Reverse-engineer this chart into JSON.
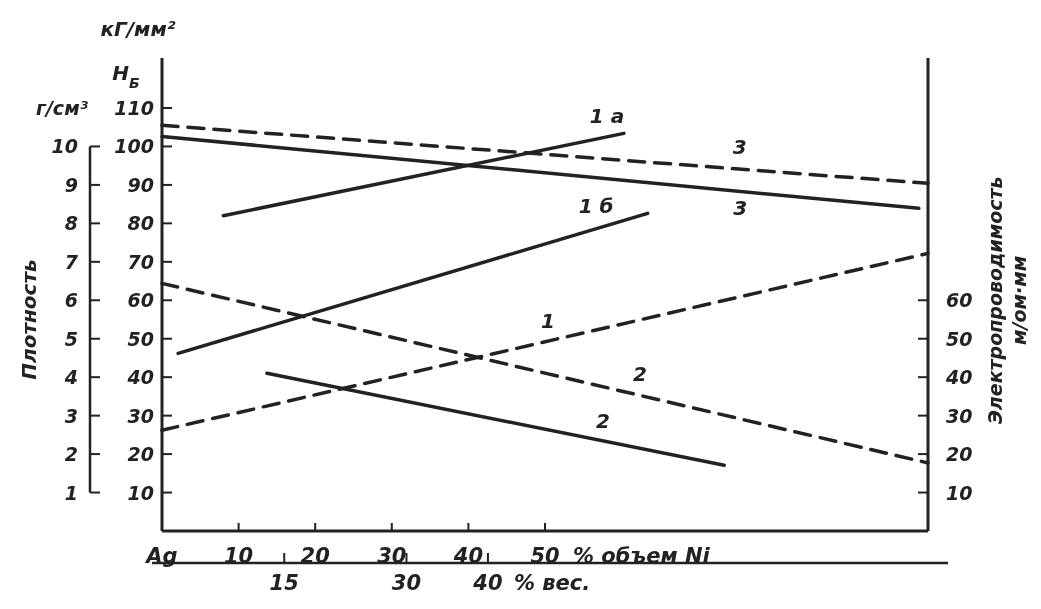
{
  "chart_data": {
    "type": "line",
    "xlabel": "% объем Ni",
    "ylabel": "кГ/мм²",
    "y2label": "Плотность",
    "y3label": "Электропроводимость\nм/ом·мм",
    "x2label": "% вес.",
    "annotations": [
      "H$_{Б}$",
      "г/см³"
    ],
    "xlim": [
      0,
      100
    ],
    "xticks": [
      {
        "value": 0,
        "label": "Ag"
      },
      10,
      20,
      30,
      40,
      50
    ],
    "x2lim": [
      0,
      94
    ],
    "x2ticks": [
      15,
      30,
      40
    ],
    "ylim": [
      0,
      123
    ],
    "yticks": [
      10,
      20,
      30,
      40,
      50,
      60,
      70,
      80,
      90,
      100,
      110
    ],
    "y2lim": [
      0,
      12.3
    ],
    "y2ticks": [
      1,
      2,
      3,
      4,
      5,
      6,
      7,
      8,
      9,
      10
    ],
    "y3lim": [
      0,
      123
    ],
    "y3ticks": [
      10,
      20,
      30,
      40,
      50,
      60
    ],
    "grid": false,
    "marker": "none",
    "series": [
      {
        "name": "1 а",
        "color": "#222222",
        "line_style": "solid",
        "x": [
          8,
          60.3
        ],
        "values": [
          82,
          103.4
        ]
      },
      {
        "name": "1 б",
        "color": "#222222",
        "line_style": "solid",
        "x": [
          2.1,
          63.4
        ],
        "values": [
          46.2,
          82.6
        ]
      },
      {
        "name": "2",
        "color": "#222222",
        "line_style": "solid",
        "x": [
          13.7,
          73.4
        ],
        "values": [
          41,
          17.1
        ]
      },
      {
        "name": "1",
        "color": "#222222",
        "line_style": "dashed",
        "x": [
          0,
          100
        ],
        "values": [
          26.2,
          72.2
        ]
      },
      {
        "name": "2",
        "color": "#222222",
        "line_style": "dashed",
        "x": [
          0,
          100
        ],
        "values": [
          64.4,
          17.7
        ]
      },
      {
        "name": "3",
        "color": "#222222",
        "line_style": "solid",
        "x": [
          0,
          98.8
        ],
        "values": [
          102.6,
          83.9
        ]
      },
      {
        "name": "3",
        "color": "#222222",
        "line_style": "dashed",
        "x": [
          0,
          100
        ],
        "values": [
          105.5,
          90.4
        ]
      }
    ]
  }
}
